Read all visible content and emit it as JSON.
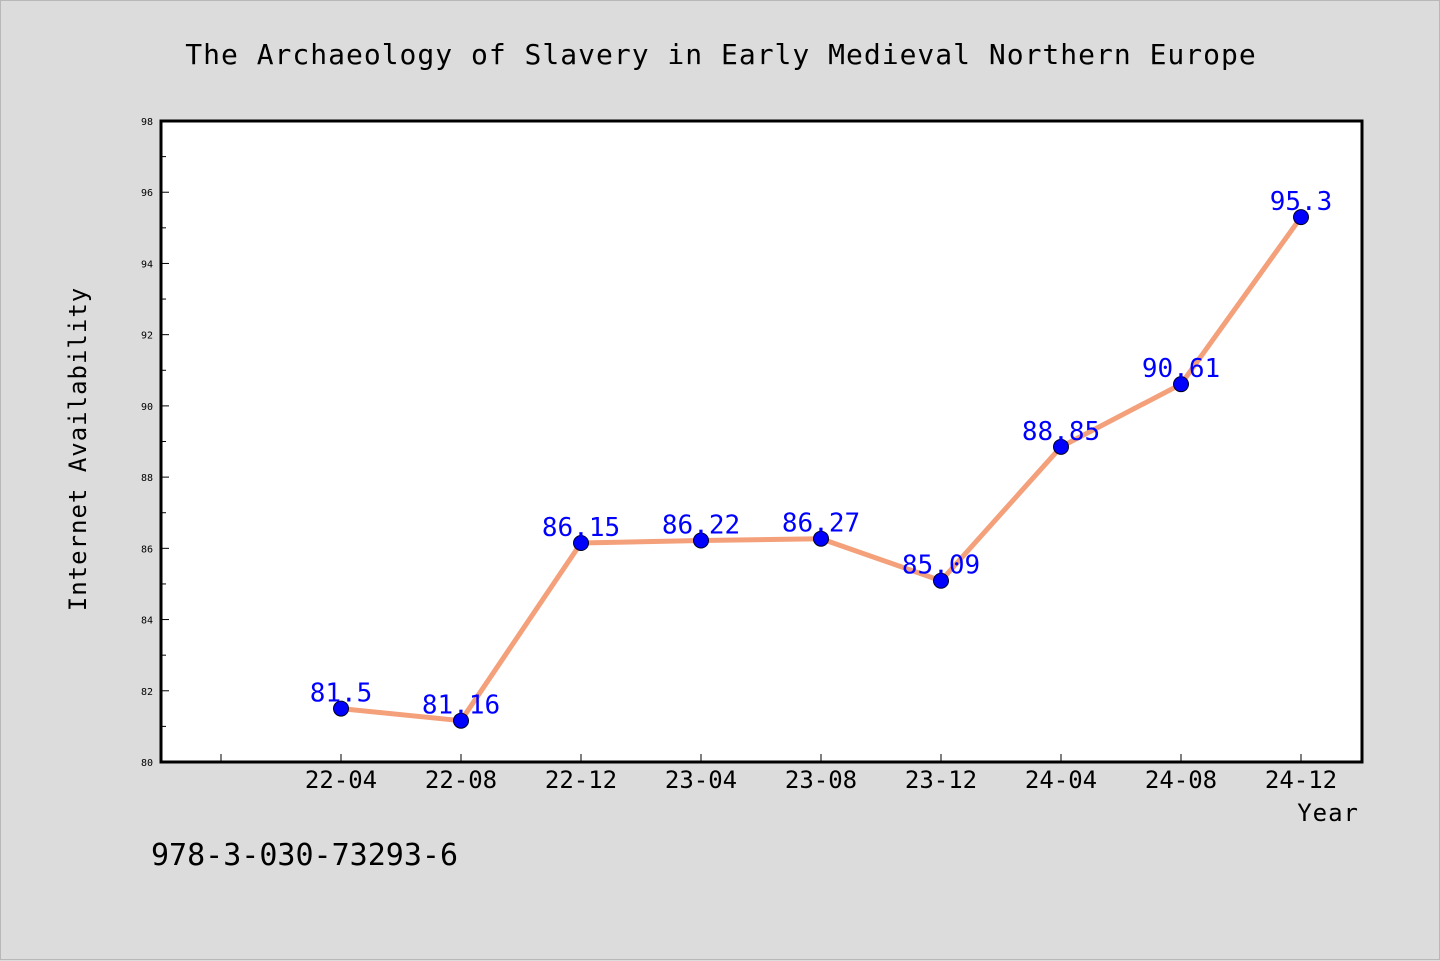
{
  "chart_data": {
    "type": "line",
    "title": "The Archaeology of Slavery in Early Medieval Northern Europe",
    "xlabel": "Year",
    "ylabel": "Internet Availability",
    "categories": [
      "22-04",
      "22-08",
      "22-12",
      "23-04",
      "23-08",
      "23-12",
      "24-04",
      "24-08",
      "24-12"
    ],
    "series": [
      {
        "values": [
          81.5,
          81.16,
          86.15,
          86.22,
          86.27,
          85.09,
          88.85,
          90.61,
          95.3
        ],
        "line_color": "#f4a07a",
        "marker_color": "#0000ff"
      }
    ],
    "data_labels": [
      "81.5",
      "81.16",
      "86.15",
      "86.22",
      "86.27",
      "85.09",
      "88.85",
      "90.61",
      "95.3"
    ],
    "ylim": [
      80,
      98
    ],
    "yticks": [
      "80",
      "82",
      "84",
      "86",
      "88",
      "90",
      "92",
      "94",
      "96",
      "98"
    ],
    "grid": false,
    "legend": "none"
  },
  "footer_text": "978-3-030-73293-6"
}
